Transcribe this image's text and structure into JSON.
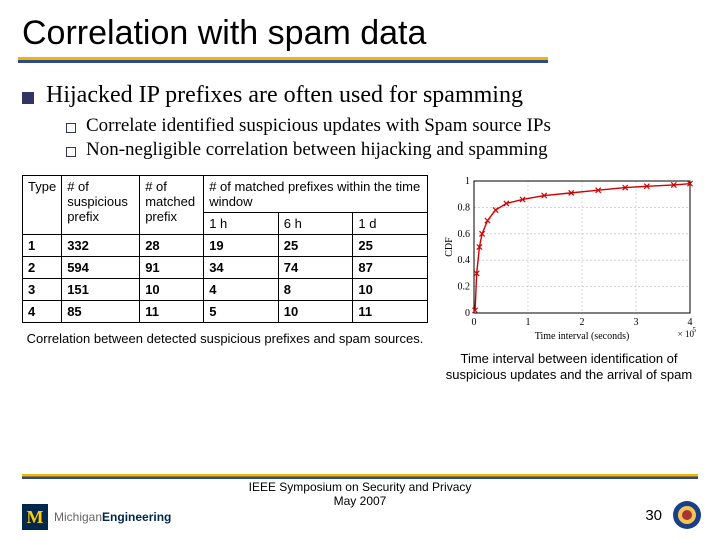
{
  "title": "Correlation with spam data",
  "bullets": {
    "l1": "Hijacked IP prefixes are often used for spamming",
    "l2a": "Correlate identified suspicious updates with Spam source IPs",
    "l2b": "Non-negligible correlation between hijacking and spamming"
  },
  "table": {
    "headers": {
      "type": "Type",
      "susp": "# of suspicious prefix",
      "matched": "# of matched prefix",
      "window": "# of matched prefixes within the time window",
      "w1": "1 h",
      "w2": "6 h",
      "w3": "1 d"
    },
    "rows": [
      {
        "type": "1",
        "susp": "332",
        "matched": "28",
        "h1": "19",
        "h6": "25",
        "d1": "25"
      },
      {
        "type": "2",
        "susp": "594",
        "matched": "91",
        "h1": "34",
        "h6": "74",
        "d1": "87"
      },
      {
        "type": "3",
        "susp": "151",
        "matched": "10",
        "h1": "4",
        "h6": "8",
        "d1": "10"
      },
      {
        "type": "4",
        "susp": "85",
        "matched": "11",
        "h1": "5",
        "h6": "10",
        "d1": "11"
      }
    ],
    "caption": "Correlation between detected suspicious prefixes and spam sources."
  },
  "chart": {
    "caption": "Time interval between identification of suspicious updates and the arrival of spam",
    "xlabel": "Time interval (seconds)",
    "ylabel": "CDF",
    "xlim": [
      0,
      4
    ],
    "xticks": [
      0,
      1,
      2,
      3,
      4
    ],
    "ylim": [
      0,
      1
    ],
    "yticks": [
      0,
      0.2,
      0.4,
      0.6,
      0.8,
      1
    ],
    "x_exp": "x 10^5",
    "line_color": "#d00000",
    "marker_color": "#d00000",
    "marker": "x",
    "grid_color": "#bcbcbc",
    "curve": [
      [
        0.02,
        0.02
      ],
      [
        0.05,
        0.3
      ],
      [
        0.1,
        0.5
      ],
      [
        0.15,
        0.6
      ],
      [
        0.25,
        0.7
      ],
      [
        0.4,
        0.78
      ],
      [
        0.6,
        0.83
      ],
      [
        0.9,
        0.86
      ],
      [
        1.3,
        0.89
      ],
      [
        1.8,
        0.91
      ],
      [
        2.3,
        0.93
      ],
      [
        2.8,
        0.95
      ],
      [
        3.2,
        0.96
      ],
      [
        3.7,
        0.97
      ],
      [
        4.0,
        0.98
      ]
    ]
  },
  "footer": {
    "conf_line1": "IEEE Symposium on Security and Privacy",
    "conf_line2": "May 2007",
    "page": "30",
    "logo_text": "MichiganEngineering"
  },
  "colors": {
    "bullet": "#333366",
    "underline_top": "#f4b400",
    "underline_bot": "#2e4a8a",
    "seal_outer": "#1a3f8a",
    "seal_inner": "#f4c453"
  }
}
